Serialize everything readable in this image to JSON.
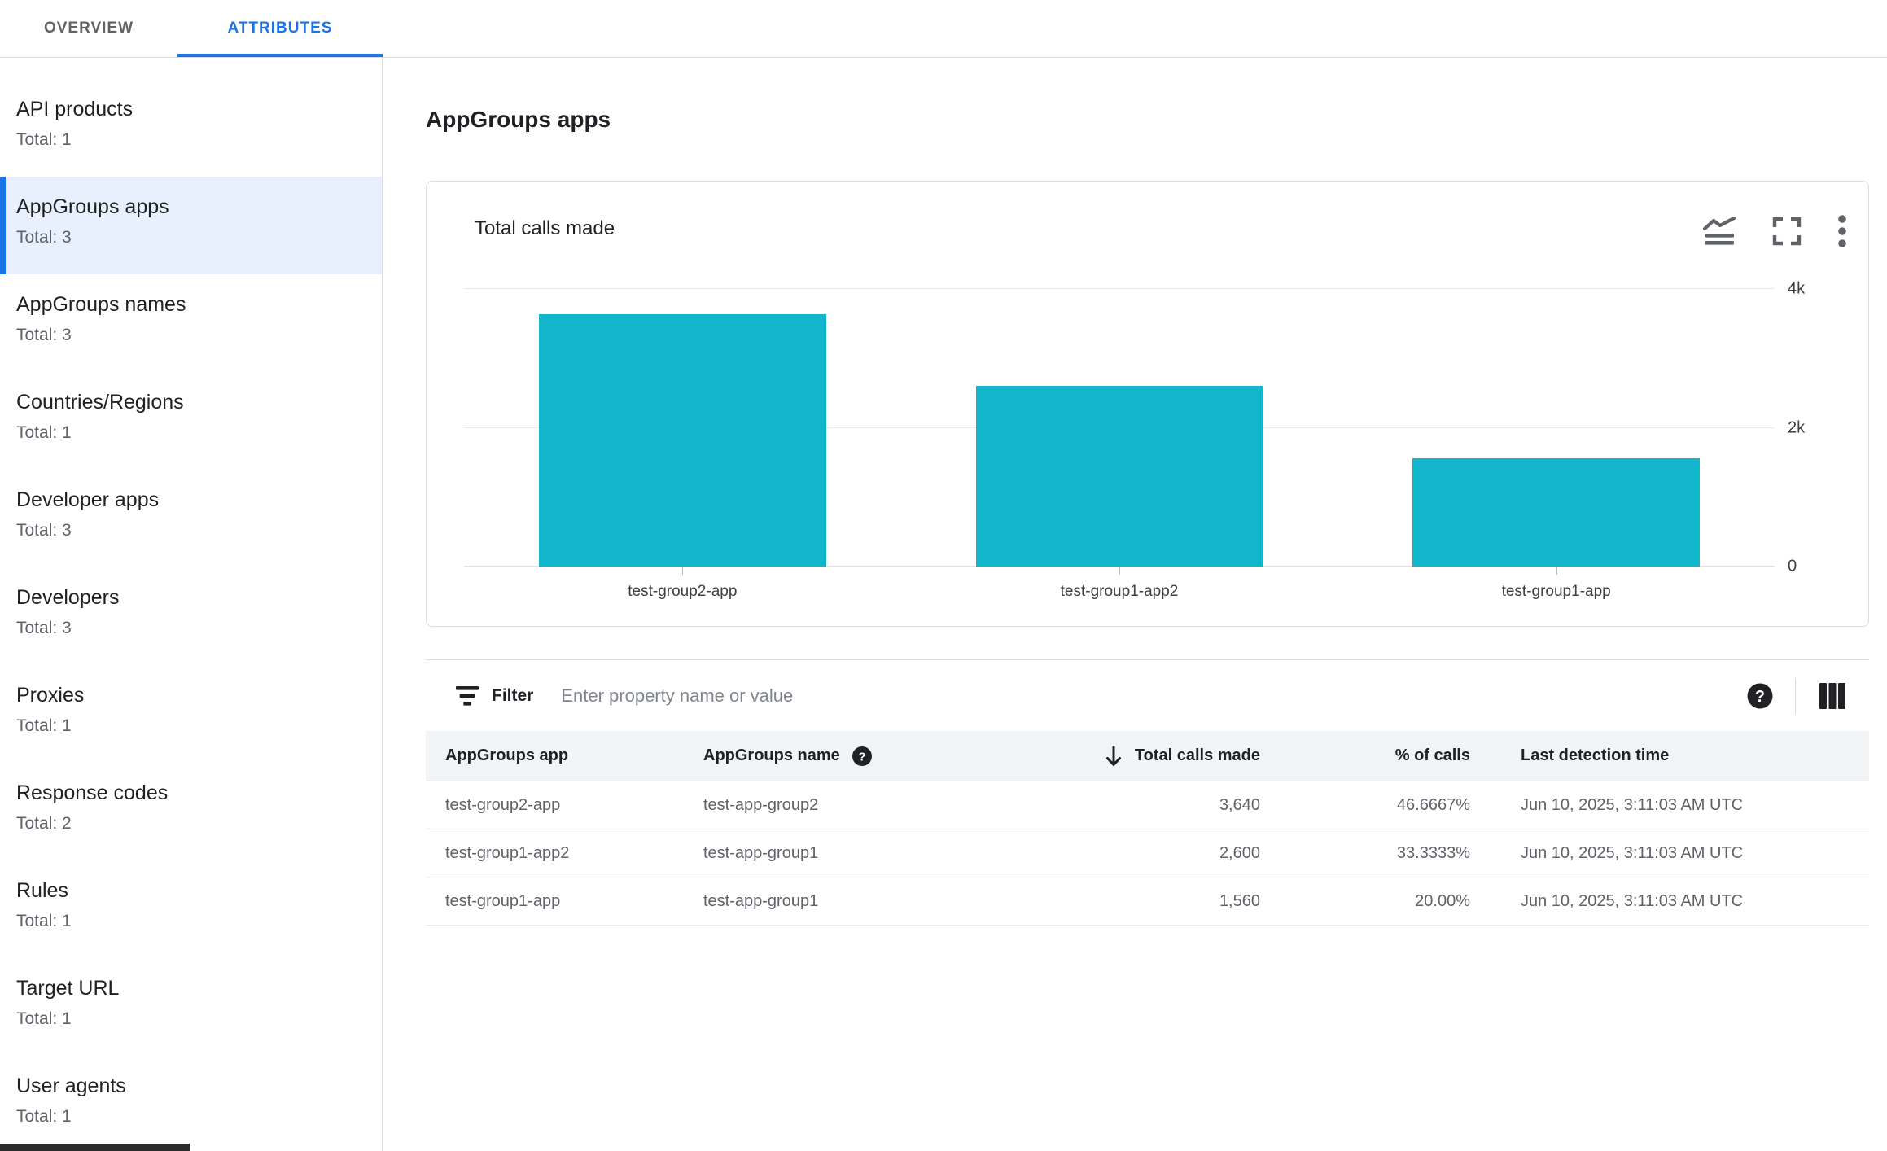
{
  "tabs": [
    {
      "label": "OVERVIEW",
      "active": false
    },
    {
      "label": "ATTRIBUTES",
      "active": true
    }
  ],
  "sidebar": {
    "items": [
      {
        "label": "API products",
        "total": "Total: 1",
        "selected": false
      },
      {
        "label": "AppGroups apps",
        "total": "Total: 3",
        "selected": true
      },
      {
        "label": "AppGroups names",
        "total": "Total: 3",
        "selected": false
      },
      {
        "label": "Countries/Regions",
        "total": "Total: 1",
        "selected": false
      },
      {
        "label": "Developer apps",
        "total": "Total: 3",
        "selected": false
      },
      {
        "label": "Developers",
        "total": "Total: 3",
        "selected": false
      },
      {
        "label": "Proxies",
        "total": "Total: 1",
        "selected": false
      },
      {
        "label": "Response codes",
        "total": "Total: 2",
        "selected": false
      },
      {
        "label": "Rules",
        "total": "Total: 1",
        "selected": false
      },
      {
        "label": "Target URL",
        "total": "Total: 1",
        "selected": false
      },
      {
        "label": "User agents",
        "total": "Total: 1",
        "selected": false
      }
    ]
  },
  "main": {
    "title": "AppGroups apps",
    "card": {
      "title": "Total calls made",
      "icons": [
        {
          "name": "area-chart-icon"
        },
        {
          "name": "fullscreen-icon"
        },
        {
          "name": "more-vert-icon"
        }
      ]
    },
    "filter": {
      "label": "Filter",
      "placeholder": "Enter property name or value",
      "icons": [
        {
          "name": "filter-list-icon"
        },
        {
          "name": "help-icon"
        },
        {
          "name": "view-column-icon"
        }
      ]
    },
    "table": {
      "columns": [
        {
          "label": "AppGroups app",
          "align": "left"
        },
        {
          "label": "AppGroups name",
          "align": "left",
          "help_icon": true
        },
        {
          "label": "Total calls made",
          "align": "right",
          "sort_icon": "arrow-down-icon",
          "sorted": "desc"
        },
        {
          "label": "% of calls",
          "align": "right"
        },
        {
          "label": "Last detection time",
          "align": "left"
        }
      ],
      "rows": [
        {
          "cells": [
            "test-group2-app",
            "test-app-group2",
            "3,640",
            "46.6667%",
            "Jun 10, 2025, 3:11:03 AM UTC"
          ]
        },
        {
          "cells": [
            "test-group1-app2",
            "test-app-group1",
            "2,600",
            "33.3333%",
            "Jun 10, 2025, 3:11:03 AM UTC"
          ]
        },
        {
          "cells": [
            "test-group1-app",
            "test-app-group1",
            "1,560",
            "20.00%",
            "Jun 10, 2025, 3:11:03 AM UTC"
          ]
        }
      ]
    }
  },
  "chart_data": {
    "type": "bar",
    "title": "Total calls made",
    "categories": [
      "test-group2-app",
      "test-group1-app2",
      "test-group1-app"
    ],
    "values": [
      3640,
      2600,
      1560
    ],
    "xlabel": "",
    "ylabel": "",
    "ylim": [
      0,
      4000
    ],
    "yticks": [
      {
        "value": 0,
        "label": "0"
      },
      {
        "value": 2000,
        "label": "2k"
      },
      {
        "value": 4000,
        "label": "4k"
      }
    ],
    "grid": "horizontal",
    "legend": "none",
    "axis_side": "right",
    "bar_color": "#12b5cb"
  },
  "colors": {
    "accent_blue": "#1a73e8",
    "bar_teal": "#12b5cb",
    "selected_item_bg": "#e8f0fe",
    "table_header_bg": "#f1f3f4",
    "border": "#dadce0",
    "text_primary": "#202124",
    "text_secondary": "#5f6368"
  }
}
